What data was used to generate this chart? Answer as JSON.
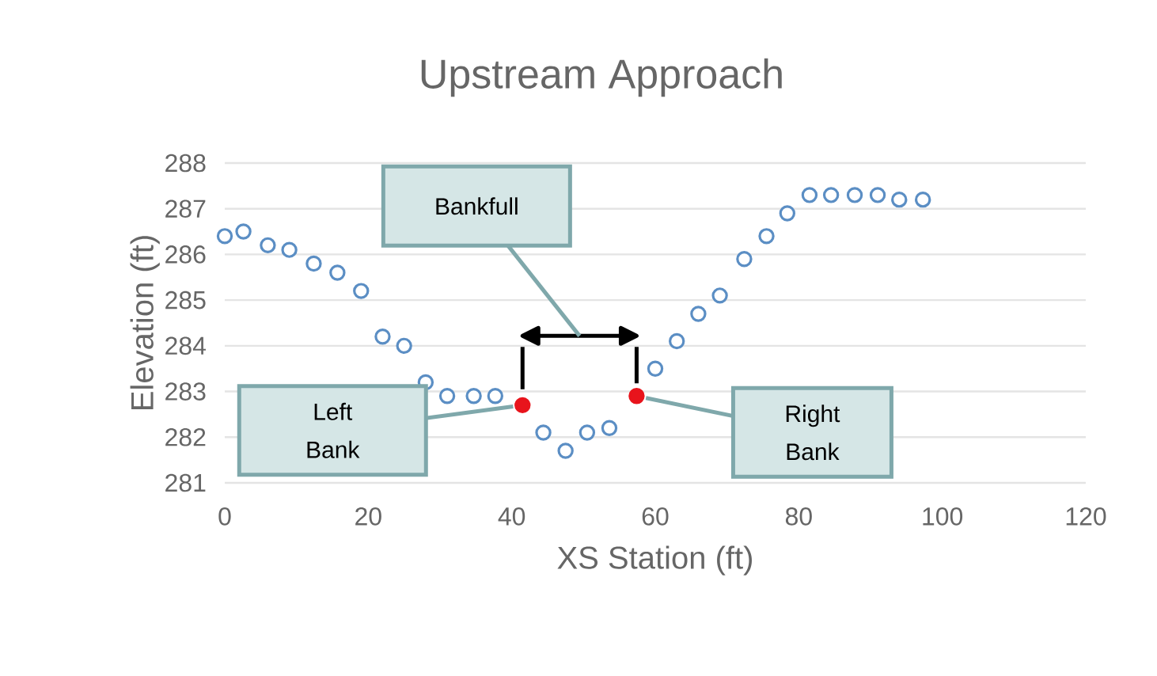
{
  "chart_data": {
    "type": "scatter",
    "title": "Upstream Approach",
    "xlabel": "XS Station (ft)",
    "ylabel": "Elevation (ft)",
    "xlim": [
      0,
      120
    ],
    "xticks": [
      0,
      20,
      40,
      60,
      80,
      100,
      120
    ],
    "ylim": [
      281,
      288
    ],
    "yticks": [
      281,
      282,
      283,
      284,
      285,
      286,
      287,
      288
    ],
    "grid": "y",
    "marker": "circle",
    "series": [
      {
        "x": [
          0,
          2.6,
          6,
          9,
          12.4,
          15.7,
          19,
          22,
          25,
          28,
          31,
          34.7,
          37.7,
          44.4,
          47.5,
          50.5,
          53.6,
          60,
          63,
          66,
          69,
          72.4,
          75.5,
          78.4,
          81.5,
          84.5,
          87.8,
          91,
          94,
          97.3
        ],
        "values": [
          286.4,
          286.5,
          286.2,
          286.1,
          285.8,
          285.6,
          285.2,
          284.2,
          284.0,
          283.2,
          282.9,
          282.9,
          282.9,
          282.1,
          281.7,
          282.1,
          282.2,
          283.5,
          284.1,
          284.7,
          285.1,
          285.9,
          286.4,
          286.9,
          287.3,
          287.3,
          287.3,
          287.3,
          287.2,
          287.2
        ],
        "colors": [
          "#5b8ec4",
          "#5b8ec4",
          "#5b8ec4",
          "#5b8ec4",
          "#5b8ec4",
          "#5b8ec4",
          "#5b8ec4",
          "#5b8ec4",
          "#5b8ec4",
          "#5b8ec4",
          "#5b8ec4",
          "#5b8ec4",
          "#5b8ec4",
          "#5b8ec4",
          "#f4f4f4",
          "#5b8ec4",
          "#5b8ec4",
          "#5b8ec4",
          "#5b8ec4",
          "#5b8ec4",
          "#5b8ec4",
          "#5b8ec4",
          "#5b8ec4",
          "#5b8ec4",
          "#5b8ec4",
          "#5b8ec4",
          "#5b8ec4",
          "#5b8ec4",
          "#5b8ec4",
          "#5b8ec4"
        ]
      },
      {
        "x": [
          41.5,
          57.4
        ],
        "values": [
          282.7,
          282.9
        ],
        "color": "#e8141c"
      }
    ],
    "annotations": [
      "Bankfull",
      {
        "text": "Left Bank",
        "x": 41.5,
        "y": 282.7
      },
      {
        "text": "Right Bank",
        "x": 57.4,
        "y": 282.9
      }
    ]
  }
}
